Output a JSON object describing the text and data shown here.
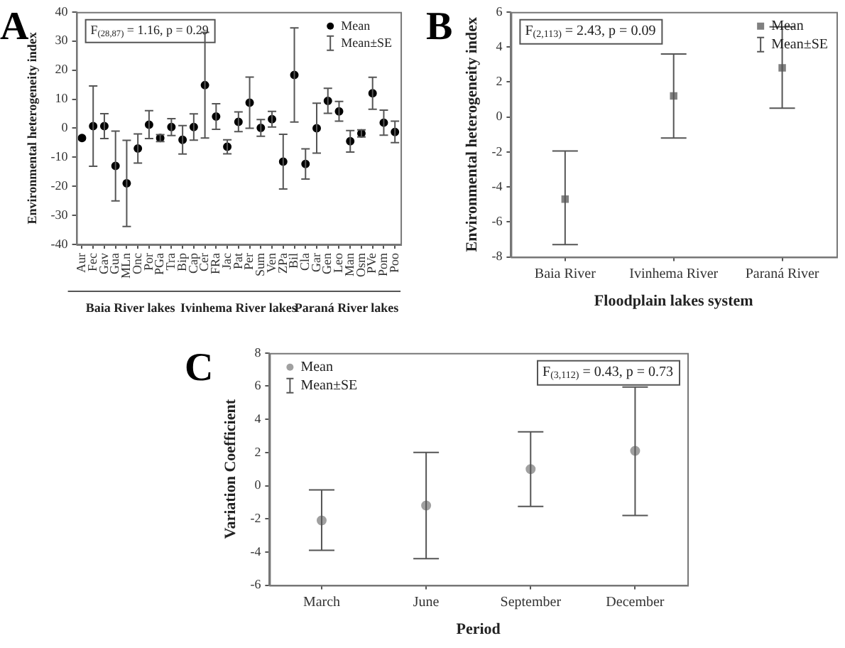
{
  "chart_data": [
    {
      "type": "scatter",
      "title": "A",
      "ylabel": "Environmental heterogeneity index",
      "categories": [
        "Aur",
        "Fec",
        "Gav",
        "Gua",
        "MLn",
        "Onc",
        "Por",
        "PGa",
        "Tra",
        "Bip",
        "Cap",
        "Cer",
        "FRa",
        "Jac",
        "Pat",
        "Per",
        "Sum",
        "Ven",
        "ZPa",
        "Bil",
        "Cla",
        "Gar",
        "Gen",
        "Leo",
        "Man",
        "Osm",
        "PVe",
        "Pom",
        "Poo"
      ],
      "series": [
        {
          "name": "Mean",
          "color": "#000000",
          "values": [
            -3.4,
            0.7,
            0.7,
            -13,
            -19,
            -7,
            1.2,
            -3.4,
            0.4,
            -4,
            0.4,
            14.8,
            4,
            -6.4,
            2.2,
            8.8,
            0.1,
            3.1,
            -11.5,
            18.3,
            -12.3,
            0,
            9.4,
            5.8,
            -4.5,
            -1.8,
            12,
            1.9,
            -1.3
          ],
          "errors": [
            null,
            13.8,
            4.3,
            12,
            14.8,
            5,
            4.8,
            1.2,
            2.9,
            4.9,
            4.5,
            18.2,
            4.4,
            2.4,
            3.4,
            8.8,
            2.9,
            2.7,
            9.4,
            16.2,
            5.2,
            8.6,
            4.3,
            3.4,
            3.7,
            1.2,
            5.5,
            4.3,
            3.7
          ]
        }
      ],
      "ylim": [
        -40,
        40
      ],
      "yticks": [
        -40,
        -30,
        -20,
        -10,
        0,
        10,
        20,
        30,
        40
      ],
      "grid": false,
      "legend": "top right",
      "marker": "circle",
      "annotations": [
        "F$_{(28,87)}$ = 1.16, p = 0.29",
        "Mean±SE",
        "Baia River lakes",
        "Ivinhema River lakes",
        "Paraná River lakes"
      ]
    },
    {
      "type": "scatter",
      "title": "B",
      "ylabel": "Environmental heterogeneity index",
      "xlabel": "Floodplain lakes system",
      "categories": [
        "Baia River",
        "Ivinhema River",
        "Paraná River"
      ],
      "series": [
        {
          "name": "Mean",
          "color": "#808080",
          "values": [
            -4.7,
            1.2,
            2.8
          ],
          "errors": [
            [
              -7.3,
              -1.95
            ],
            [
              -1.2,
              3.6
            ],
            [
              0.5,
              5.15
            ]
          ]
        }
      ],
      "ylim": [
        -8,
        6
      ],
      "yticks": [
        -8,
        -6,
        -4,
        -2,
        0,
        2,
        4,
        6
      ],
      "grid": false,
      "legend": "top right",
      "marker": "square",
      "annotations": [
        "F$_{(2,113)}$ = 2.43, p = 0.09",
        "Mean±SE"
      ]
    },
    {
      "type": "scatter",
      "title": "C",
      "ylabel": "Variation Coefficient",
      "xlabel": "Period",
      "categories": [
        "March",
        "June",
        "September",
        "December"
      ],
      "series": [
        {
          "name": "Mean",
          "color": "#a0a0a0",
          "values": [
            -2.1,
            -1.2,
            1.0,
            2.1
          ],
          "errors": [
            [
              -3.9,
              -0.25
            ],
            [
              -4.4,
              2.0
            ],
            [
              -1.25,
              3.25
            ],
            [
              -1.8,
              5.95
            ]
          ]
        }
      ],
      "ylim": [
        -6,
        8
      ],
      "yticks": [
        -6,
        -4,
        -2,
        0,
        2,
        4,
        6,
        8
      ],
      "grid": false,
      "legend": "top left",
      "marker": "circle",
      "annotations": [
        "F$_{(3,112)}$ = 0.43, p = 0.73",
        "Mean±SE"
      ]
    }
  ]
}
